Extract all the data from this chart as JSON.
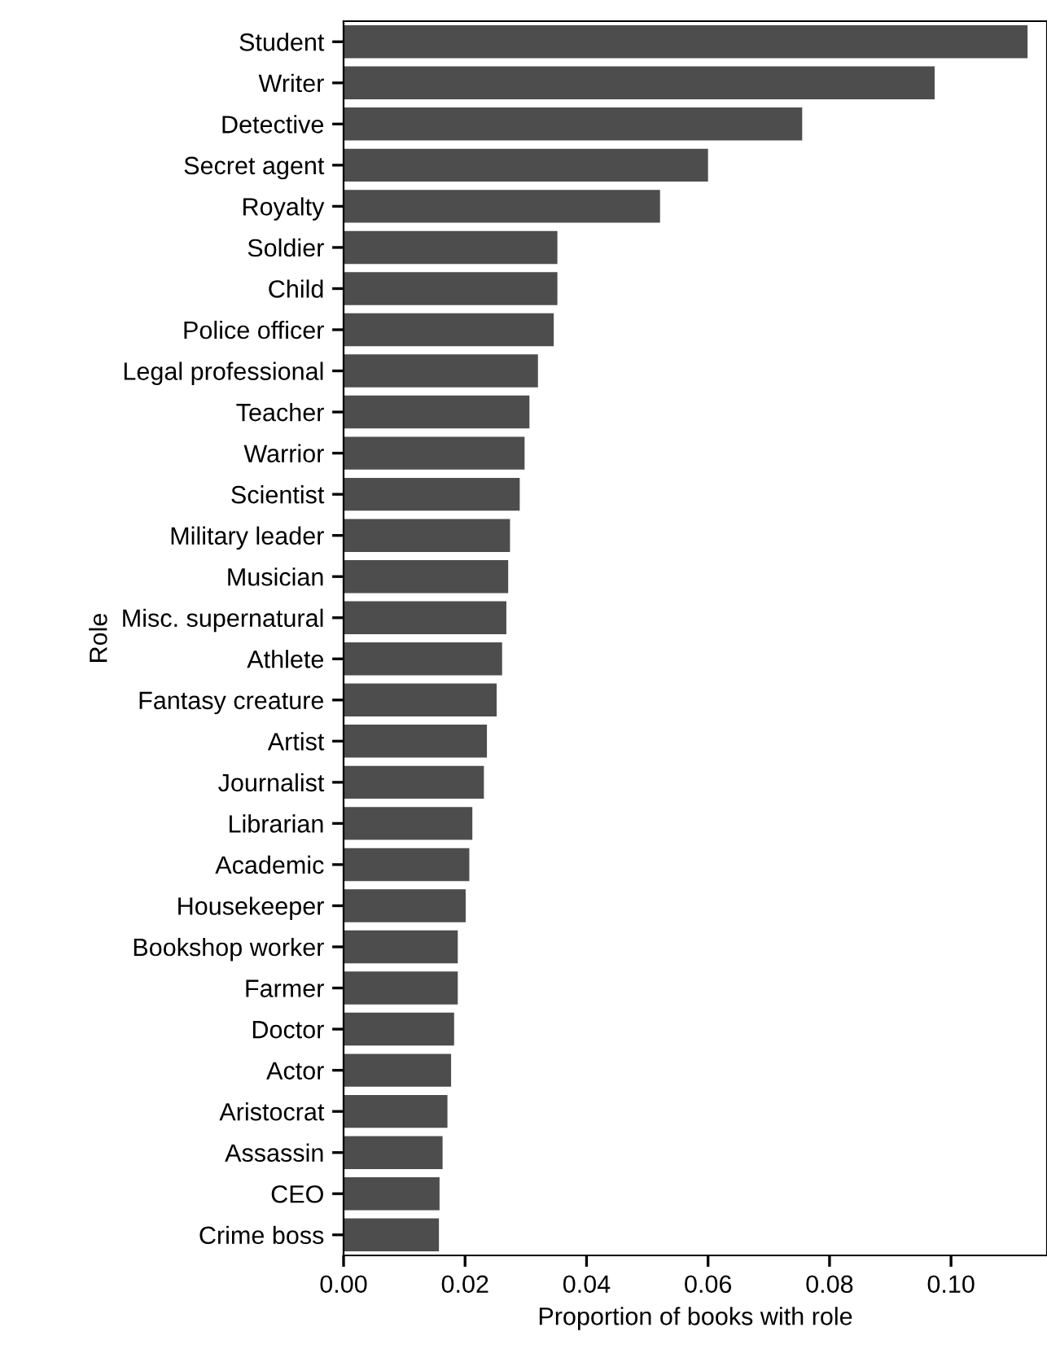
{
  "chart_data": {
    "type": "bar",
    "orientation": "horizontal",
    "xlabel": "Proportion of books with role",
    "ylabel": "Role",
    "color": "#4d4d4d",
    "categories": [
      "Student",
      "Writer",
      "Detective",
      "Secret agent",
      "Royalty",
      "Soldier",
      "Child",
      "Police officer",
      "Legal professional",
      "Teacher",
      "Warrior",
      "Scientist",
      "Military leader",
      "Musician",
      "Misc. supernatural",
      "Athlete",
      "Fantasy creature",
      "Artist",
      "Journalist",
      "Librarian",
      "Academic",
      "Housekeeper",
      "Bookshop worker",
      "Farmer",
      "Doctor",
      "Actor",
      "Aristocrat",
      "Assassin",
      "CEO",
      "Crime boss"
    ],
    "values": [
      0.1126,
      0.0973,
      0.0755,
      0.06,
      0.0521,
      0.0352,
      0.0352,
      0.0346,
      0.032,
      0.0306,
      0.0298,
      0.029,
      0.0274,
      0.0271,
      0.0268,
      0.0261,
      0.0252,
      0.0236,
      0.0231,
      0.0212,
      0.0207,
      0.0201,
      0.0188,
      0.0188,
      0.0182,
      0.0177,
      0.0171,
      0.0163,
      0.0158,
      0.0157
    ],
    "xlim": [
      0,
      0.1158
    ],
    "xticks": [
      {
        "value": 0,
        "label": "0.00"
      },
      {
        "value": 0.02,
        "label": "0.02"
      },
      {
        "value": 0.04,
        "label": "0.04"
      },
      {
        "value": 0.06,
        "label": "0.06"
      },
      {
        "value": 0.08,
        "label": "0.08"
      },
      {
        "value": 0.1,
        "label": "0.10"
      }
    ],
    "grid": false,
    "legend": false
  }
}
